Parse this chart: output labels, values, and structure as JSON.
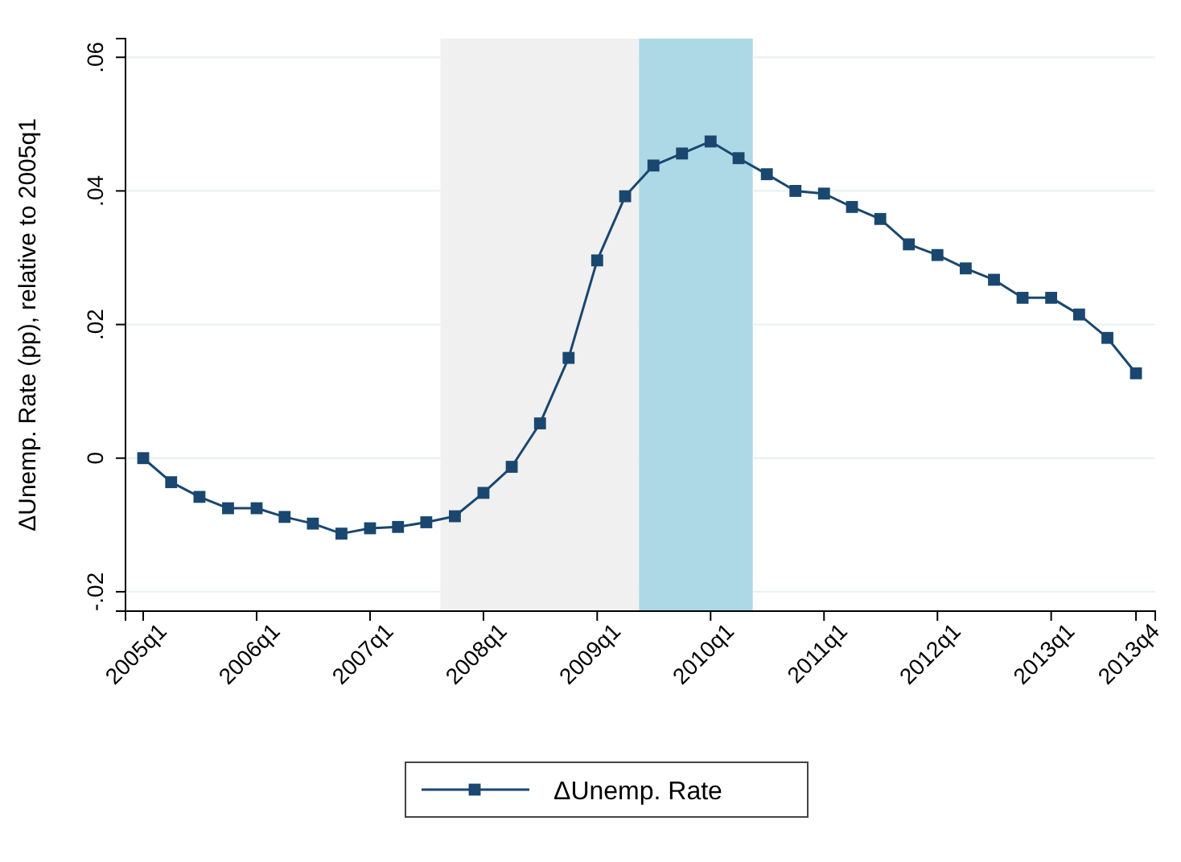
{
  "chart_data": {
    "type": "line",
    "ylabel": "ΔUnemp. Rate (pp), relative to 2005q1",
    "x": [
      "2005-01",
      "2005-04",
      "2005-07",
      "2005-10",
      "2006-01",
      "2006-04",
      "2006-07",
      "2006-10",
      "2007-01",
      "2007-04",
      "2007-07",
      "2007-10",
      "2008-01",
      "2008-04",
      "2008-07",
      "2008-10",
      "2009-01",
      "2009-04",
      "2009-07",
      "2009-10",
      "2010-01",
      "2010-04",
      "2010-07",
      "2010-10",
      "2011-01",
      "2011-04",
      "2011-07",
      "2011-10",
      "2012-01",
      "2012-04",
      "2012-07",
      "2012-10",
      "2013-01",
      "2013-04",
      "2013-07",
      "2013-10"
    ],
    "series": [
      {
        "name": "ΔUnemp. Rate",
        "color": "#1a476f",
        "values": [
          0,
          -0.0036,
          -0.0058,
          -0.0075,
          -0.0075,
          -0.0088,
          -0.0098,
          -0.0113,
          -0.0105,
          -0.0103,
          -0.0096,
          -0.0087,
          -0.0052,
          -0.0013,
          0.0052,
          0.015,
          0.0296,
          0.0392,
          0.0438,
          0.0456,
          0.0474,
          0.0449,
          0.0425,
          0.04,
          0.0396,
          0.0376,
          0.0358,
          0.032,
          0.0304,
          0.0284,
          0.0267,
          0.024,
          0.024,
          0.0215,
          0.018,
          0.0127
        ]
      }
    ],
    "xlim": [
      "2004-11-05",
      "2013-12-02"
    ],
    "xticks": [
      {
        "value": "2005-01",
        "label": "2005q1"
      },
      {
        "value": "2006-01",
        "label": "2006q1"
      },
      {
        "value": "2007-01",
        "label": "2007q1"
      },
      {
        "value": "2008-01",
        "label": "2008q1"
      },
      {
        "value": "2009-01",
        "label": "2009q1"
      },
      {
        "value": "2010-01",
        "label": "2010q1"
      },
      {
        "value": "2011-01",
        "label": "2011q1"
      },
      {
        "value": "2012-01",
        "label": "2012q1"
      },
      {
        "value": "2013-01",
        "label": "2013q1"
      },
      {
        "value": "2013-10",
        "label": "2013q4"
      }
    ],
    "ylim": [
      -0.0229,
      0.0628
    ],
    "yticks": [
      {
        "value": -0.02,
        "label": "-.02"
      },
      {
        "value": 0,
        "label": "0"
      },
      {
        "value": 0.02,
        "label": ".02"
      },
      {
        "value": 0.04,
        "label": ".04"
      },
      {
        "value": 0.06,
        "label": ".06"
      }
    ],
    "bands": [
      {
        "axis": "x",
        "from": "2007-08-16",
        "to": "2009-05-16",
        "color": "#f0f0f0"
      },
      {
        "axis": "x",
        "from": "2009-05-16",
        "to": "2010-05-16",
        "color": "#add8e6"
      }
    ],
    "grid": "y",
    "legend": "bottom",
    "marker": "square",
    "line_style": "solid"
  }
}
